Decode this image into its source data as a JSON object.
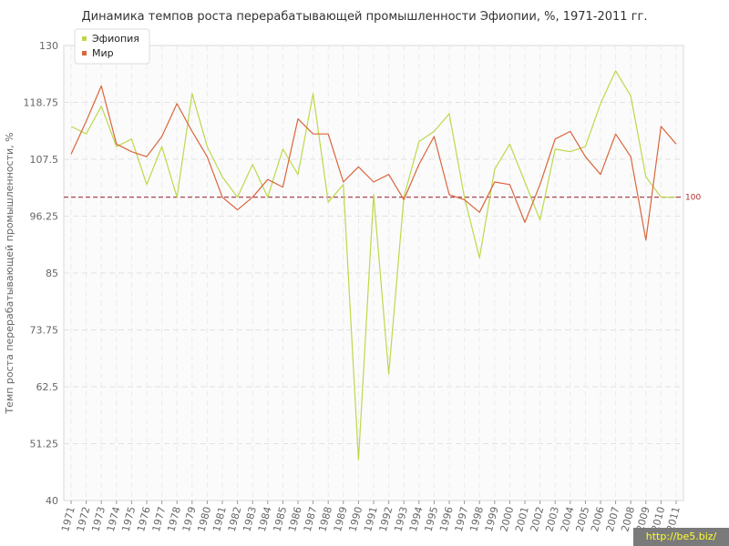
{
  "chart_data": {
    "type": "line",
    "title": "Динамика темпов роста перерабатывающей промышленности Эфиопии, %, 1971-2011 гг.",
    "xlabel": "",
    "ylabel": "Темп роста перерабатывающей промышленности, %",
    "ylim": [
      40,
      130
    ],
    "yticks": [
      "40",
      "51.25",
      "62.5",
      "73.75",
      "85",
      "96.25",
      "107.5",
      "118.75",
      "130"
    ],
    "x": [
      "1971",
      "1972",
      "1973",
      "1974",
      "1975",
      "1976",
      "1977",
      "1978",
      "1979",
      "1980",
      "1981",
      "1982",
      "1983",
      "1984",
      "1985",
      "1986",
      "1987",
      "1988",
      "1989",
      "1990",
      "1991",
      "1992",
      "1993",
      "1994",
      "1995",
      "1996",
      "1997",
      "1998",
      "1999",
      "2000",
      "2001",
      "2002",
      "2003",
      "2004",
      "2005",
      "2006",
      "2007",
      "2008",
      "2009",
      "2010",
      "2011"
    ],
    "series": [
      {
        "name": "Эфиопия",
        "color": "#bcd94a",
        "values": [
          114,
          112.5,
          118,
          110,
          111.5,
          102.5,
          110,
          100,
          120.5,
          110,
          104,
          100,
          106.5,
          100,
          109.5,
          104.5,
          120.5,
          99,
          102.5,
          48,
          100.5,
          65,
          100,
          111,
          113,
          116.5,
          100,
          88,
          105.5,
          110.5,
          103,
          95.5,
          109.5,
          109,
          110,
          118.5,
          125,
          120,
          104,
          100,
          100
        ]
      },
      {
        "name": "Мир",
        "color": "#d9653b",
        "values": [
          108.5,
          115,
          122,
          110.5,
          109,
          108,
          112,
          118.5,
          113,
          108,
          100,
          97.5,
          100,
          103.5,
          102,
          115.5,
          112.5,
          112.5,
          103,
          106,
          103,
          104.5,
          99.5,
          106.5,
          112,
          100.5,
          99.5,
          97,
          103,
          102.5,
          95,
          102.5,
          111.5,
          113,
          108,
          104.5,
          112.5,
          108,
          91.5,
          114,
          110.5
        ]
      }
    ],
    "reference_line": {
      "value": 100,
      "label": "100",
      "color": "#a03040"
    },
    "grid": true,
    "legend": "top-left"
  },
  "watermark": "http://be5.biz/"
}
